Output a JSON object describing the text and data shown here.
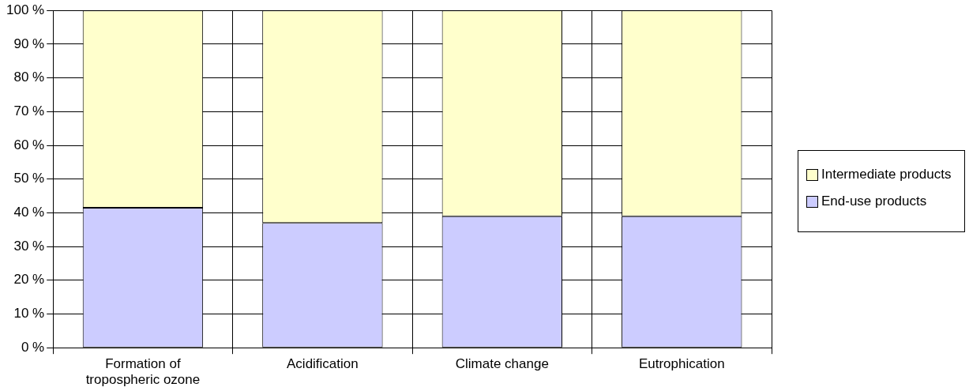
{
  "chart_data": {
    "type": "bar",
    "stacked": true,
    "categories": [
      "Formation of tropospheric ozone",
      "Acidification",
      "Climate change",
      "Eutrophication"
    ],
    "series": [
      {
        "name": "End-use products",
        "color": "#ccccff",
        "values": [
          41.5,
          37,
          39,
          39
        ]
      },
      {
        "name": "Intermediate products",
        "color": "#ffffcc",
        "values": [
          58.5,
          63,
          61,
          61
        ]
      }
    ],
    "ylim": [
      0,
      100
    ],
    "yticks": [
      {
        "value": 0,
        "label": "0 %"
      },
      {
        "value": 10,
        "label": "10 %"
      },
      {
        "value": 20,
        "label": "20 %"
      },
      {
        "value": 30,
        "label": "30 %"
      },
      {
        "value": 40,
        "label": "40 %"
      },
      {
        "value": 50,
        "label": "50 %"
      },
      {
        "value": 60,
        "label": "60 %"
      },
      {
        "value": 70,
        "label": "70 %"
      },
      {
        "value": 80,
        "label": "80 %"
      },
      {
        "value": 90,
        "label": "90 %"
      },
      {
        "value": 100,
        "label": "100 %"
      }
    ],
    "grid": true,
    "legend": "right"
  }
}
